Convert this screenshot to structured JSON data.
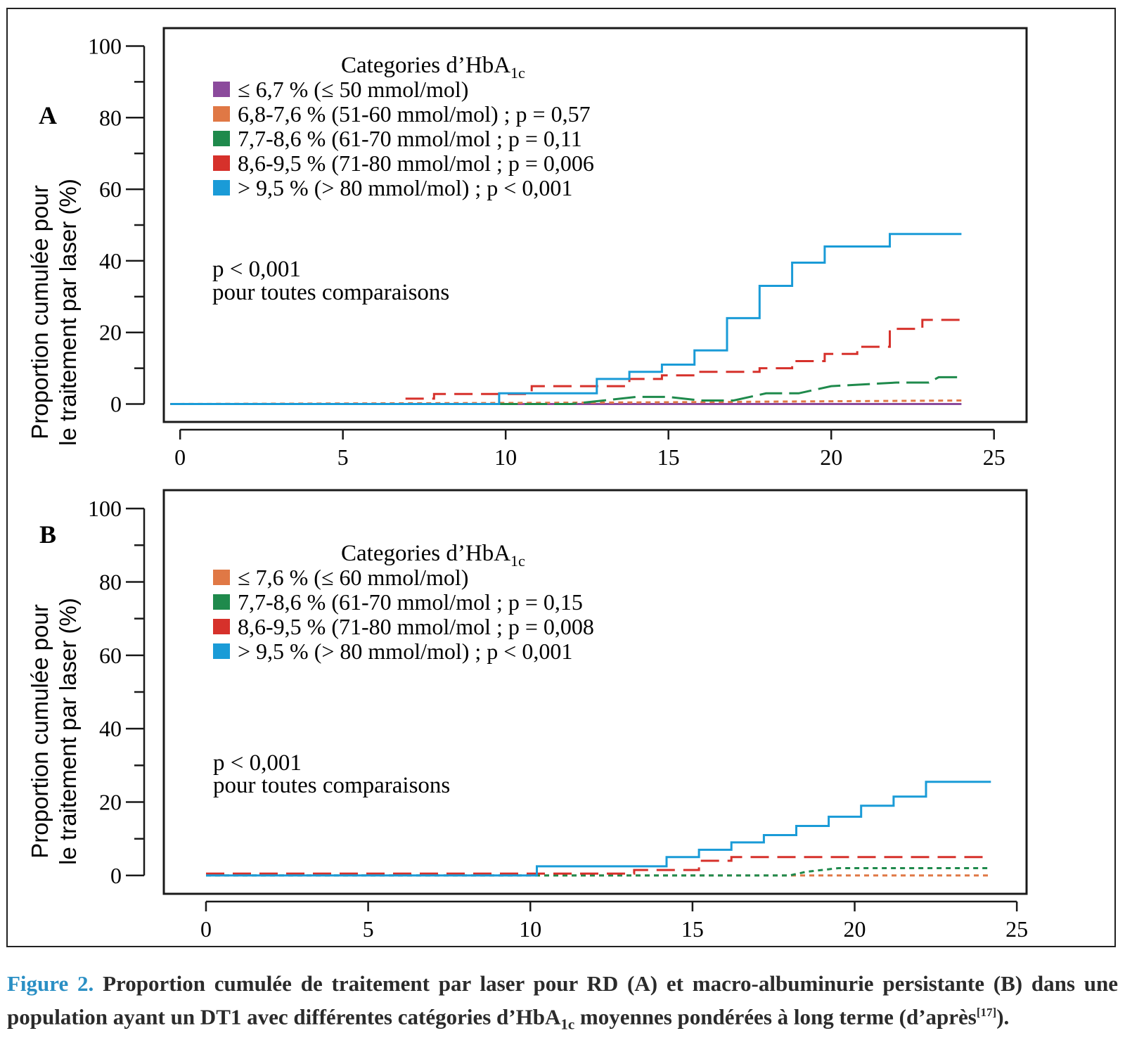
{
  "colors": {
    "purple": "#8b4a9c",
    "orange": "#e07845",
    "green": "#1f8a4c",
    "red": "#d6312b",
    "blue": "#1a9bd7",
    "caption_accent": "#2a8fc4"
  },
  "caption": {
    "label": "Figure 2.",
    "text_1": "Proportion cumulée de traitement par laser pour RD (A) et macro-albuminurie persistante (B) dans une population ayant un DT1 avec différentes catégories d’HbA",
    "sub": "1c",
    "text_2": " moyennes pondérées à long terme (d’après",
    "ref": "[17]",
    "text_3": ")."
  },
  "chart_data": [
    {
      "panel_label": "A",
      "type": "line",
      "step": true,
      "ylabel_line1": "Proportion cumulée pour",
      "ylabel_line2": "le traitement par laser (%)",
      "xlabel": "",
      "xlim": [
        -0.5,
        26
      ],
      "ylim": [
        -5,
        105
      ],
      "x_ticks": [
        0,
        5,
        10,
        15,
        20,
        25
      ],
      "y_ticks": [
        0,
        20,
        40,
        60,
        80,
        100
      ],
      "legend": {
        "title": "Categories d’HbA",
        "title_sub": "1c",
        "placement": "top-left",
        "entries": [
          {
            "label": "≤ 6,7 % (≤ 50 mmol/mol)",
            "color": "#8b4a9c"
          },
          {
            "label": "6,8-7,6 % (51-60 mmol/mol) ; p = 0,57",
            "color": "#e07845"
          },
          {
            "label": "7,7-8,6 % (61-70 mmol/mol ; p = 0,11",
            "color": "#1f8a4c"
          },
          {
            "label": "8,6-9,5 % (71-80 mmol/mol ; p = 0,006",
            "color": "#d6312b"
          },
          {
            "label": "> 9,5 % (> 80 mmol/mol) ; p < 0,001",
            "color": "#1a9bd7"
          }
        ]
      },
      "annotation": {
        "line1": "p < 0,001",
        "line2": "pour toutes comparaisons"
      },
      "series": [
        {
          "color": "#8b4a9c",
          "dash": "solid",
          "points": [
            [
              -0.3,
              0
            ],
            [
              24,
              0
            ]
          ]
        },
        {
          "color": "#e07845",
          "dash": "dot",
          "points": [
            [
              -0.3,
              0
            ],
            [
              10,
              0.3
            ],
            [
              15,
              0.5
            ],
            [
              24,
              1
            ]
          ]
        },
        {
          "color": "#1f8a4c",
          "dash": "longdash",
          "points": [
            [
              -0.3,
              0
            ],
            [
              12,
              0
            ],
            [
              13,
              1
            ],
            [
              14,
              2
            ],
            [
              15,
              2
            ],
            [
              16,
              1
            ],
            [
              17,
              1
            ],
            [
              18,
              3
            ],
            [
              19,
              3
            ],
            [
              20,
              5
            ],
            [
              22,
              6
            ],
            [
              23,
              6
            ],
            [
              23.3,
              7.5
            ],
            [
              24,
              7.5
            ]
          ]
        },
        {
          "color": "#d6312b",
          "dash": "dash",
          "points": [
            [
              -0.3,
              0
            ],
            [
              6.8,
              0
            ],
            [
              6.8,
              1.5
            ],
            [
              7.8,
              1.5
            ],
            [
              7.8,
              2.8
            ],
            [
              10.8,
              2.8
            ],
            [
              10.8,
              5
            ],
            [
              13.8,
              5
            ],
            [
              13.8,
              7
            ],
            [
              14.8,
              7
            ],
            [
              14.8,
              8
            ],
            [
              15.8,
              8
            ],
            [
              15.8,
              9
            ],
            [
              17.8,
              9
            ],
            [
              17.8,
              10
            ],
            [
              18.8,
              10
            ],
            [
              18.8,
              12
            ],
            [
              19.8,
              12
            ],
            [
              19.8,
              14
            ],
            [
              20.8,
              14
            ],
            [
              20.8,
              16
            ],
            [
              21.8,
              16
            ],
            [
              21.8,
              21
            ],
            [
              22.8,
              21
            ],
            [
              22.8,
              23.5
            ],
            [
              24,
              23.5
            ]
          ]
        },
        {
          "color": "#1a9bd7",
          "dash": "solid",
          "points": [
            [
              -0.3,
              0
            ],
            [
              9.8,
              0
            ],
            [
              9.8,
              3
            ],
            [
              12.8,
              3
            ],
            [
              12.8,
              7
            ],
            [
              13.8,
              7
            ],
            [
              13.8,
              9
            ],
            [
              14.8,
              9
            ],
            [
              14.8,
              11
            ],
            [
              15.8,
              11
            ],
            [
              15.8,
              15
            ],
            [
              16.8,
              15
            ],
            [
              16.8,
              24
            ],
            [
              17.8,
              24
            ],
            [
              17.8,
              33
            ],
            [
              18.8,
              33
            ],
            [
              18.8,
              39.5
            ],
            [
              19.8,
              39.5
            ],
            [
              19.8,
              44
            ],
            [
              21.8,
              44
            ],
            [
              21.8,
              47.5
            ],
            [
              24,
              47.5
            ]
          ]
        }
      ]
    },
    {
      "panel_label": "B",
      "type": "line",
      "step": true,
      "ylabel_line1": "Proportion cumulée pour",
      "ylabel_line2": "le traitement par laser (%)",
      "xlabel": "",
      "xlim": [
        -1.3,
        25.3
      ],
      "ylim": [
        -5,
        105
      ],
      "x_ticks": [
        0,
        5,
        10,
        15,
        20,
        25
      ],
      "y_ticks": [
        0,
        20,
        40,
        60,
        80,
        100
      ],
      "legend": {
        "title": "Categories d’HbA",
        "title_sub": "1c",
        "placement": "top-left",
        "entries": [
          {
            "label": "≤ 7,6 % (≤ 60 mmol/mol)",
            "color": "#e07845"
          },
          {
            "label": "7,7-8,6 % (61-70 mmol/mol ; p = 0,15",
            "color": "#1f8a4c"
          },
          {
            "label": "8,6-9,5 % (71-80 mmol/mol ; p = 0,008",
            "color": "#d6312b"
          },
          {
            "label": "> 9,5 % (> 80 mmol/mol) ; p < 0,001",
            "color": "#1a9bd7"
          }
        ]
      },
      "annotation": {
        "line1": "p < 0,001",
        "line2": "pour toutes comparaisons"
      },
      "series": [
        {
          "color": "#e07845",
          "dash": "dot",
          "points": [
            [
              0,
              0
            ],
            [
              24.2,
              0
            ]
          ]
        },
        {
          "color": "#1f8a4c",
          "dash": "dot",
          "points": [
            [
              0,
              0
            ],
            [
              18,
              0
            ],
            [
              18.5,
              1
            ],
            [
              19.5,
              2
            ],
            [
              20.5,
              2
            ],
            [
              24.2,
              2
            ]
          ]
        },
        {
          "color": "#d6312b",
          "dash": "dash",
          "points": [
            [
              0,
              0.5
            ],
            [
              13.2,
              0.5
            ],
            [
              13.2,
              1.5
            ],
            [
              15.2,
              1.5
            ],
            [
              15.2,
              4
            ],
            [
              16.2,
              4
            ],
            [
              16.2,
              5
            ],
            [
              24.2,
              5
            ]
          ]
        },
        {
          "color": "#1a9bd7",
          "dash": "solid",
          "points": [
            [
              0,
              0
            ],
            [
              10.2,
              0
            ],
            [
              10.2,
              2.5
            ],
            [
              14.2,
              2.5
            ],
            [
              14.2,
              5
            ],
            [
              15.2,
              5
            ],
            [
              15.2,
              7
            ],
            [
              16.2,
              7
            ],
            [
              16.2,
              9
            ],
            [
              17.2,
              9
            ],
            [
              17.2,
              11
            ],
            [
              18.2,
              11
            ],
            [
              18.2,
              13.5
            ],
            [
              19.2,
              13.5
            ],
            [
              19.2,
              16
            ],
            [
              20.2,
              16
            ],
            [
              20.2,
              19
            ],
            [
              21.2,
              19
            ],
            [
              21.2,
              21.5
            ],
            [
              22.2,
              21.5
            ],
            [
              22.2,
              25.5
            ],
            [
              24.2,
              25.5
            ]
          ]
        }
      ]
    }
  ]
}
